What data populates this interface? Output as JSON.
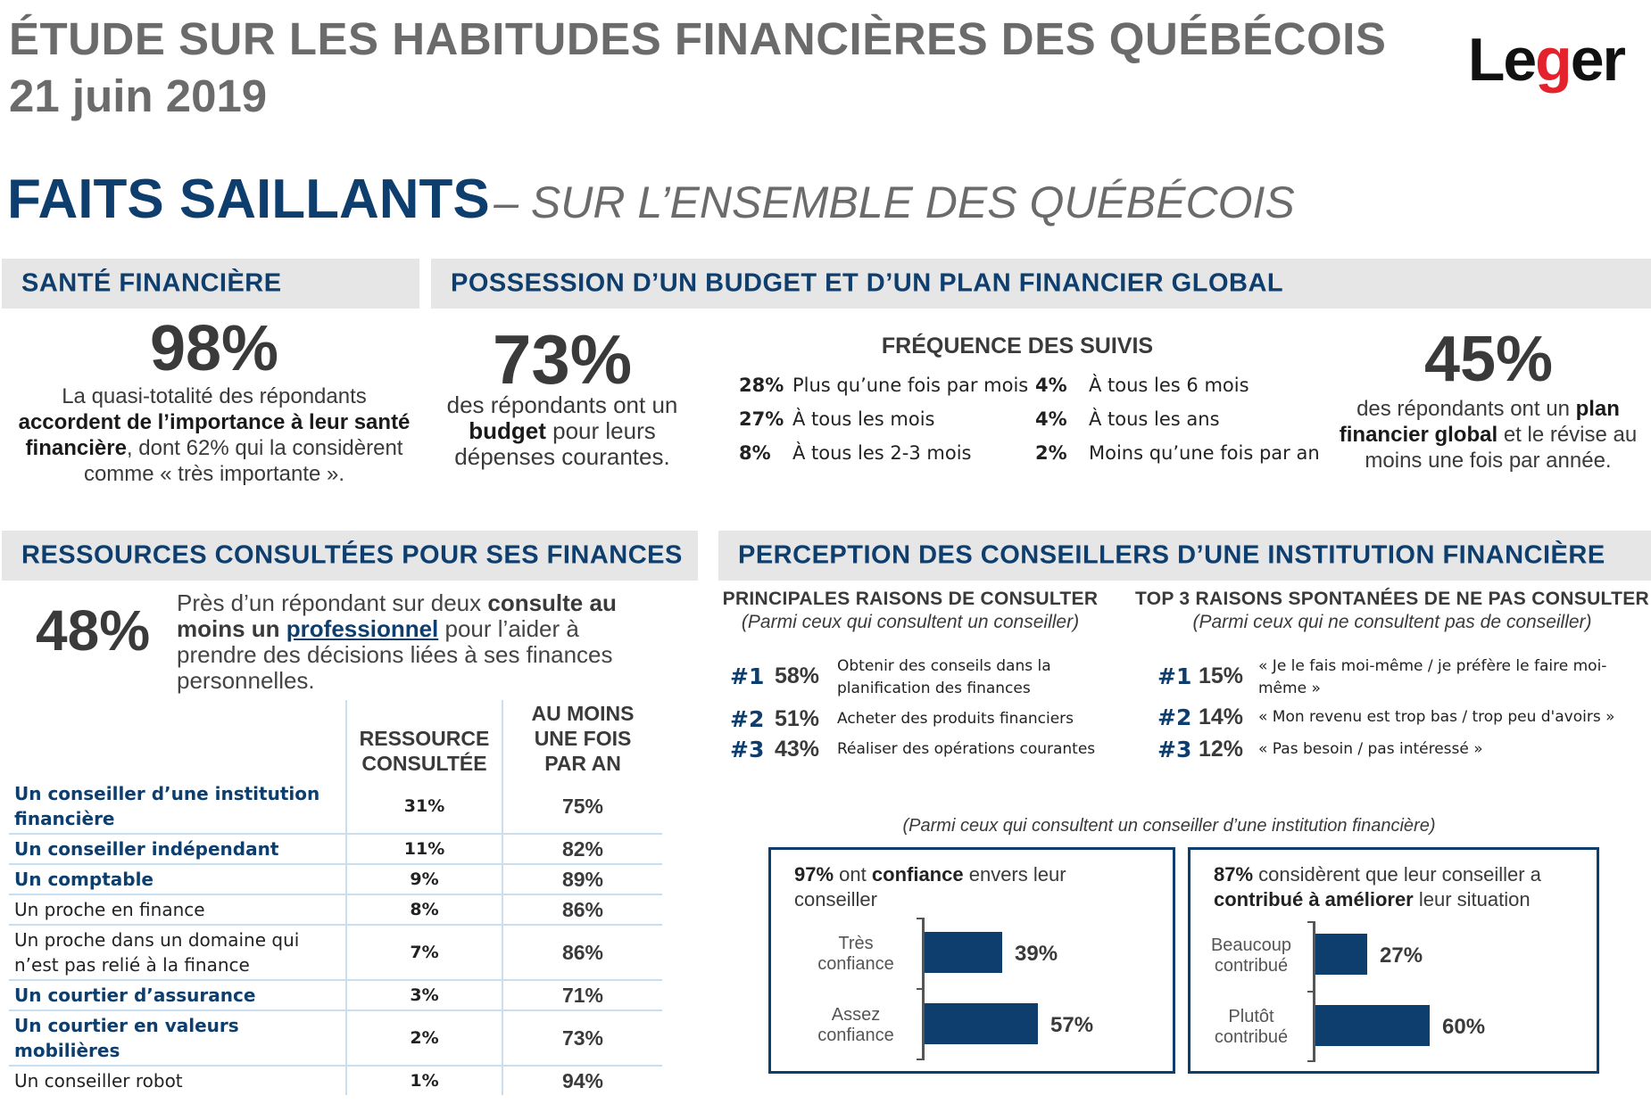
{
  "header": {
    "title": "ÉTUDE SUR LES HABITUDES FINANCIÈRES DES QUÉBÉCOIS",
    "date": "21 juin 2019",
    "logo_left": "Le",
    "logo_g": "g",
    "logo_right": "er"
  },
  "headline": {
    "main": "FAITS SAILLANTS",
    "sub": "– SUR L’ENSEMBLE DES QUÉBÉCOIS"
  },
  "sante": {
    "heading": "SANTÉ FINANCIÈRE",
    "pct": "98%",
    "text_1": "La quasi-totalité des répondants",
    "text_bold": "accordent de l’importance à leur santé financière",
    "text_2": ", dont 62% qui la considèrent comme « très importante »."
  },
  "budget": {
    "heading": "POSSESSION D’UN BUDGET ET D’UN PLAN FINANCIER GLOBAL",
    "pct": "73%",
    "text_1": "des répondants ont un",
    "text_bold": "budget",
    "text_2": "pour leurs dépenses courantes.",
    "freq_title": "FRÉQUENCE DES SUIVIS",
    "freq": [
      {
        "pct": "28%",
        "label": "Plus qu’une fois par mois"
      },
      {
        "pct": "27%",
        "label": "À tous les mois"
      },
      {
        "pct": "8%",
        "label": "À tous les 2-3 mois"
      },
      {
        "pct": "4%",
        "label": "À tous les 6 mois"
      },
      {
        "pct": "4%",
        "label": "À tous les ans"
      },
      {
        "pct": "2%",
        "label": "Moins qu’une fois par an"
      }
    ],
    "plan_pct": "45%",
    "plan_text_1": "des répondants ont un",
    "plan_bold": "plan financier global",
    "plan_text_2": "et le révise au moins une fois par année."
  },
  "ressources": {
    "heading": "RESSOURCES CONSULTÉES POUR SES FINANCES",
    "pct": "48%",
    "text_1": "Près d’un répondant sur deux",
    "text_bold": "consulte au moins un",
    "text_link": "professionnel",
    "text_2": "pour l’aider à prendre des décisions liées à ses finances personnelles.",
    "col1": "RESSOURCE CONSULTÉE",
    "col2": "AU MOINS UNE FOIS PAR AN",
    "rows": [
      {
        "label": "Un conseiller d’une institution financière",
        "v1": "31%",
        "v2": "75%",
        "hl": true
      },
      {
        "label": "Un conseiller indépendant",
        "v1": "11%",
        "v2": "82%",
        "hl": true
      },
      {
        "label": "Un comptable",
        "v1": "9%",
        "v2": "89%",
        "hl": true
      },
      {
        "label": "Un proche en finance",
        "v1": "8%",
        "v2": "86%",
        "hl": false
      },
      {
        "label": "Un proche dans un domaine qui n’est pas relié à la finance",
        "v1": "7%",
        "v2": "86%",
        "hl": false
      },
      {
        "label": "Un courtier d’assurance",
        "v1": "3%",
        "v2": "71%",
        "hl": true
      },
      {
        "label": "Un courtier en valeurs mobilières",
        "v1": "2%",
        "v2": "73%",
        "hl": true
      },
      {
        "label": "Un conseiller robot",
        "v1": "1%",
        "v2": "94%",
        "hl": false
      }
    ]
  },
  "perception": {
    "heading": "PERCEPTION DES CONSEILLERS D’UNE INSTITUTION FINANCIÈRE",
    "left_title": "PRINCIPALES RAISONS DE CONSULTER",
    "left_sub": "(Parmi ceux qui consultent un conseiller)",
    "left_items": [
      {
        "rank": "#1",
        "pct": "58%",
        "label": "Obtenir des conseils dans la planification des finances"
      },
      {
        "rank": "#2",
        "pct": "51%",
        "label": "Acheter des produits financiers"
      },
      {
        "rank": "#3",
        "pct": "43%",
        "label": "Réaliser des opérations courantes"
      }
    ],
    "right_title": "TOP 3 RAISONS SPONTANÉES DE NE PAS CONSULTER",
    "right_sub": "(Parmi ceux qui ne consultent pas de conseiller)",
    "right_items": [
      {
        "rank": "#1",
        "pct": "15%",
        "label": "« Je le fais moi-même / je préfère le faire moi-même »"
      },
      {
        "rank": "#2",
        "pct": "14%",
        "label": "« Mon revenu est trop bas / trop peu d'avoirs »"
      },
      {
        "rank": "#3",
        "pct": "12%",
        "label": "« Pas besoin / pas intéressé »"
      }
    ],
    "note": "(Parmi ceux qui consultent un conseiller d’une institution financière)"
  },
  "chart_data": [
    {
      "type": "bar",
      "title": "97% ont confiance envers leur conseiller",
      "categories": [
        "Très confiance",
        "Assez confiance"
      ],
      "values": [
        39,
        57
      ],
      "labels": [
        "39%",
        "57%"
      ],
      "color": "#0e3e6e"
    },
    {
      "type": "bar",
      "title": "87% considèrent que leur conseiller a contribué à améliorer leur situation",
      "categories": [
        "Beaucoup contribué",
        "Plutôt contribué"
      ],
      "values": [
        27,
        60
      ],
      "labels": [
        "27%",
        "60%"
      ],
      "color": "#0e3e6e"
    }
  ],
  "box1": {
    "t_pct": "97%",
    "t_1": "ont",
    "t_bold": "confiance",
    "t_2": "envers leur conseiller",
    "cat_1a": "Très",
    "cat_1b": "confiance",
    "cat_2a": "Assez",
    "cat_2b": "confiance"
  },
  "box2": {
    "t_pct": "87%",
    "t_1": "considèrent que leur conseiller a",
    "t_bold": "contribué à améliorer",
    "t_2": "leur situation",
    "cat_1a": "Beaucoup",
    "cat_1b": "contribué",
    "cat_2a": "Plutôt",
    "cat_2b": "contribué"
  }
}
